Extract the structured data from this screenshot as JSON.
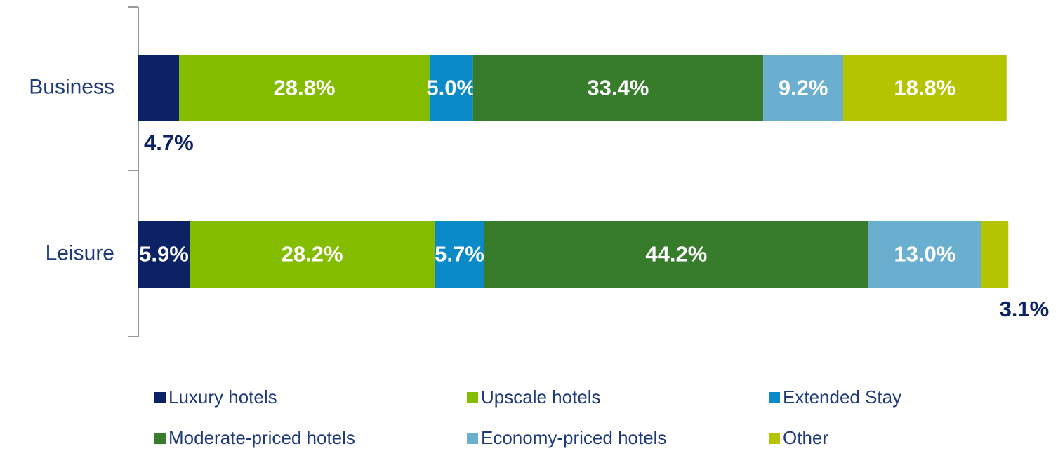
{
  "chart_data": {
    "type": "stacked-barh",
    "categories": [
      "Business",
      "Leisure"
    ],
    "xlim": [
      0,
      100
    ],
    "series": [
      {
        "name": "Luxury hotels",
        "color": "#0b2265",
        "values": [
          4.7,
          5.9
        ],
        "value_labels": [
          "4.7%",
          "5.9%"
        ]
      },
      {
        "name": "Upscale hotels",
        "color": "#84bd00",
        "values": [
          28.8,
          28.2
        ],
        "value_labels": [
          "28.8%",
          "28.2%"
        ]
      },
      {
        "name": "Extended Stay",
        "color": "#0b8ac8",
        "values": [
          5.0,
          5.7
        ],
        "value_labels": [
          "5.0%",
          "5.7%"
        ]
      },
      {
        "name": "Moderate-priced hotels",
        "color": "#367c2b",
        "values": [
          33.4,
          44.2
        ],
        "value_labels": [
          "33.4%",
          "44.2%"
        ]
      },
      {
        "name": "Economy-priced hotels",
        "color": "#6aafcf",
        "values": [
          9.2,
          13.0
        ],
        "value_labels": [
          "9.2%",
          "13.0%"
        ]
      },
      {
        "name": "Other",
        "color": "#b5c400",
        "values": [
          18.8,
          3.1
        ],
        "value_labels": [
          "18.8%",
          "3.1%"
        ]
      }
    ],
    "legend": "bottom"
  }
}
